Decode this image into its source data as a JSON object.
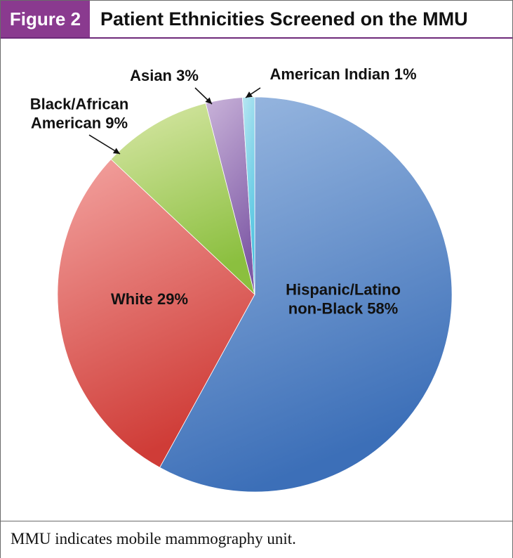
{
  "figure": {
    "label": "Figure 2",
    "title": "Patient Ethnicities Screened on the MMU",
    "footnote": "MMU indicates mobile mammography unit."
  },
  "chart_data": {
    "type": "pie",
    "title": "Patient Ethnicities Screened on the MMU",
    "slices": [
      {
        "label": [
          "Hispanic/Latino",
          "non-Black 58%"
        ],
        "value": 58,
        "color_light": "#9dbbe2",
        "color_dark": "#3c6fb8"
      },
      {
        "label": [
          "White 29%"
        ],
        "value": 29,
        "color_light": "#f3a3a0",
        "color_dark": "#cf3c37"
      },
      {
        "label": [
          "Black/African",
          "American 9%"
        ],
        "value": 9,
        "color_light": "#d9e8a8",
        "color_dark": "#8bbf3f"
      },
      {
        "label": [
          "Asian 3%"
        ],
        "value": 3,
        "color_light": "#c9b3d9",
        "color_dark": "#7f5aa6"
      },
      {
        "label": [
          "American Indian 1%"
        ],
        "value": 1,
        "color_light": "#b8e6f2",
        "color_dark": "#4ec3e0"
      }
    ],
    "start": "12 o'clock",
    "direction": "clockwise",
    "legend": "none"
  }
}
